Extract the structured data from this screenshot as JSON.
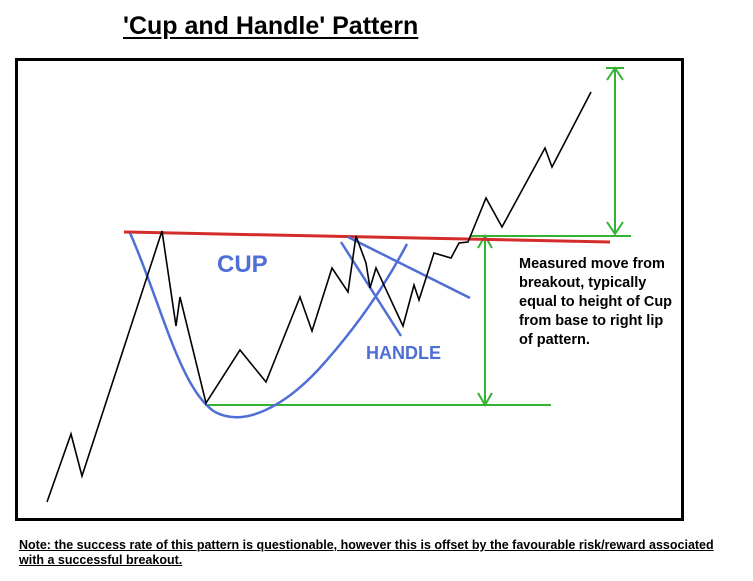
{
  "title": "'Cup and Handle' Pattern",
  "labels": {
    "cup": "CUP",
    "handle": "HANDLE",
    "measured_move": "Measured move from breakout, typically equal to height of Cup from base to right lip of pattern."
  },
  "note": "Note: the success rate of this pattern is questionable, however this is offset by the favourable risk/reward associated with a successful breakout.",
  "colors": {
    "price_line": "#000000",
    "resistance_line": "#d42b2b",
    "cup_handle_lines": "#4f6ed6",
    "measure_lines": "#33b233"
  }
}
